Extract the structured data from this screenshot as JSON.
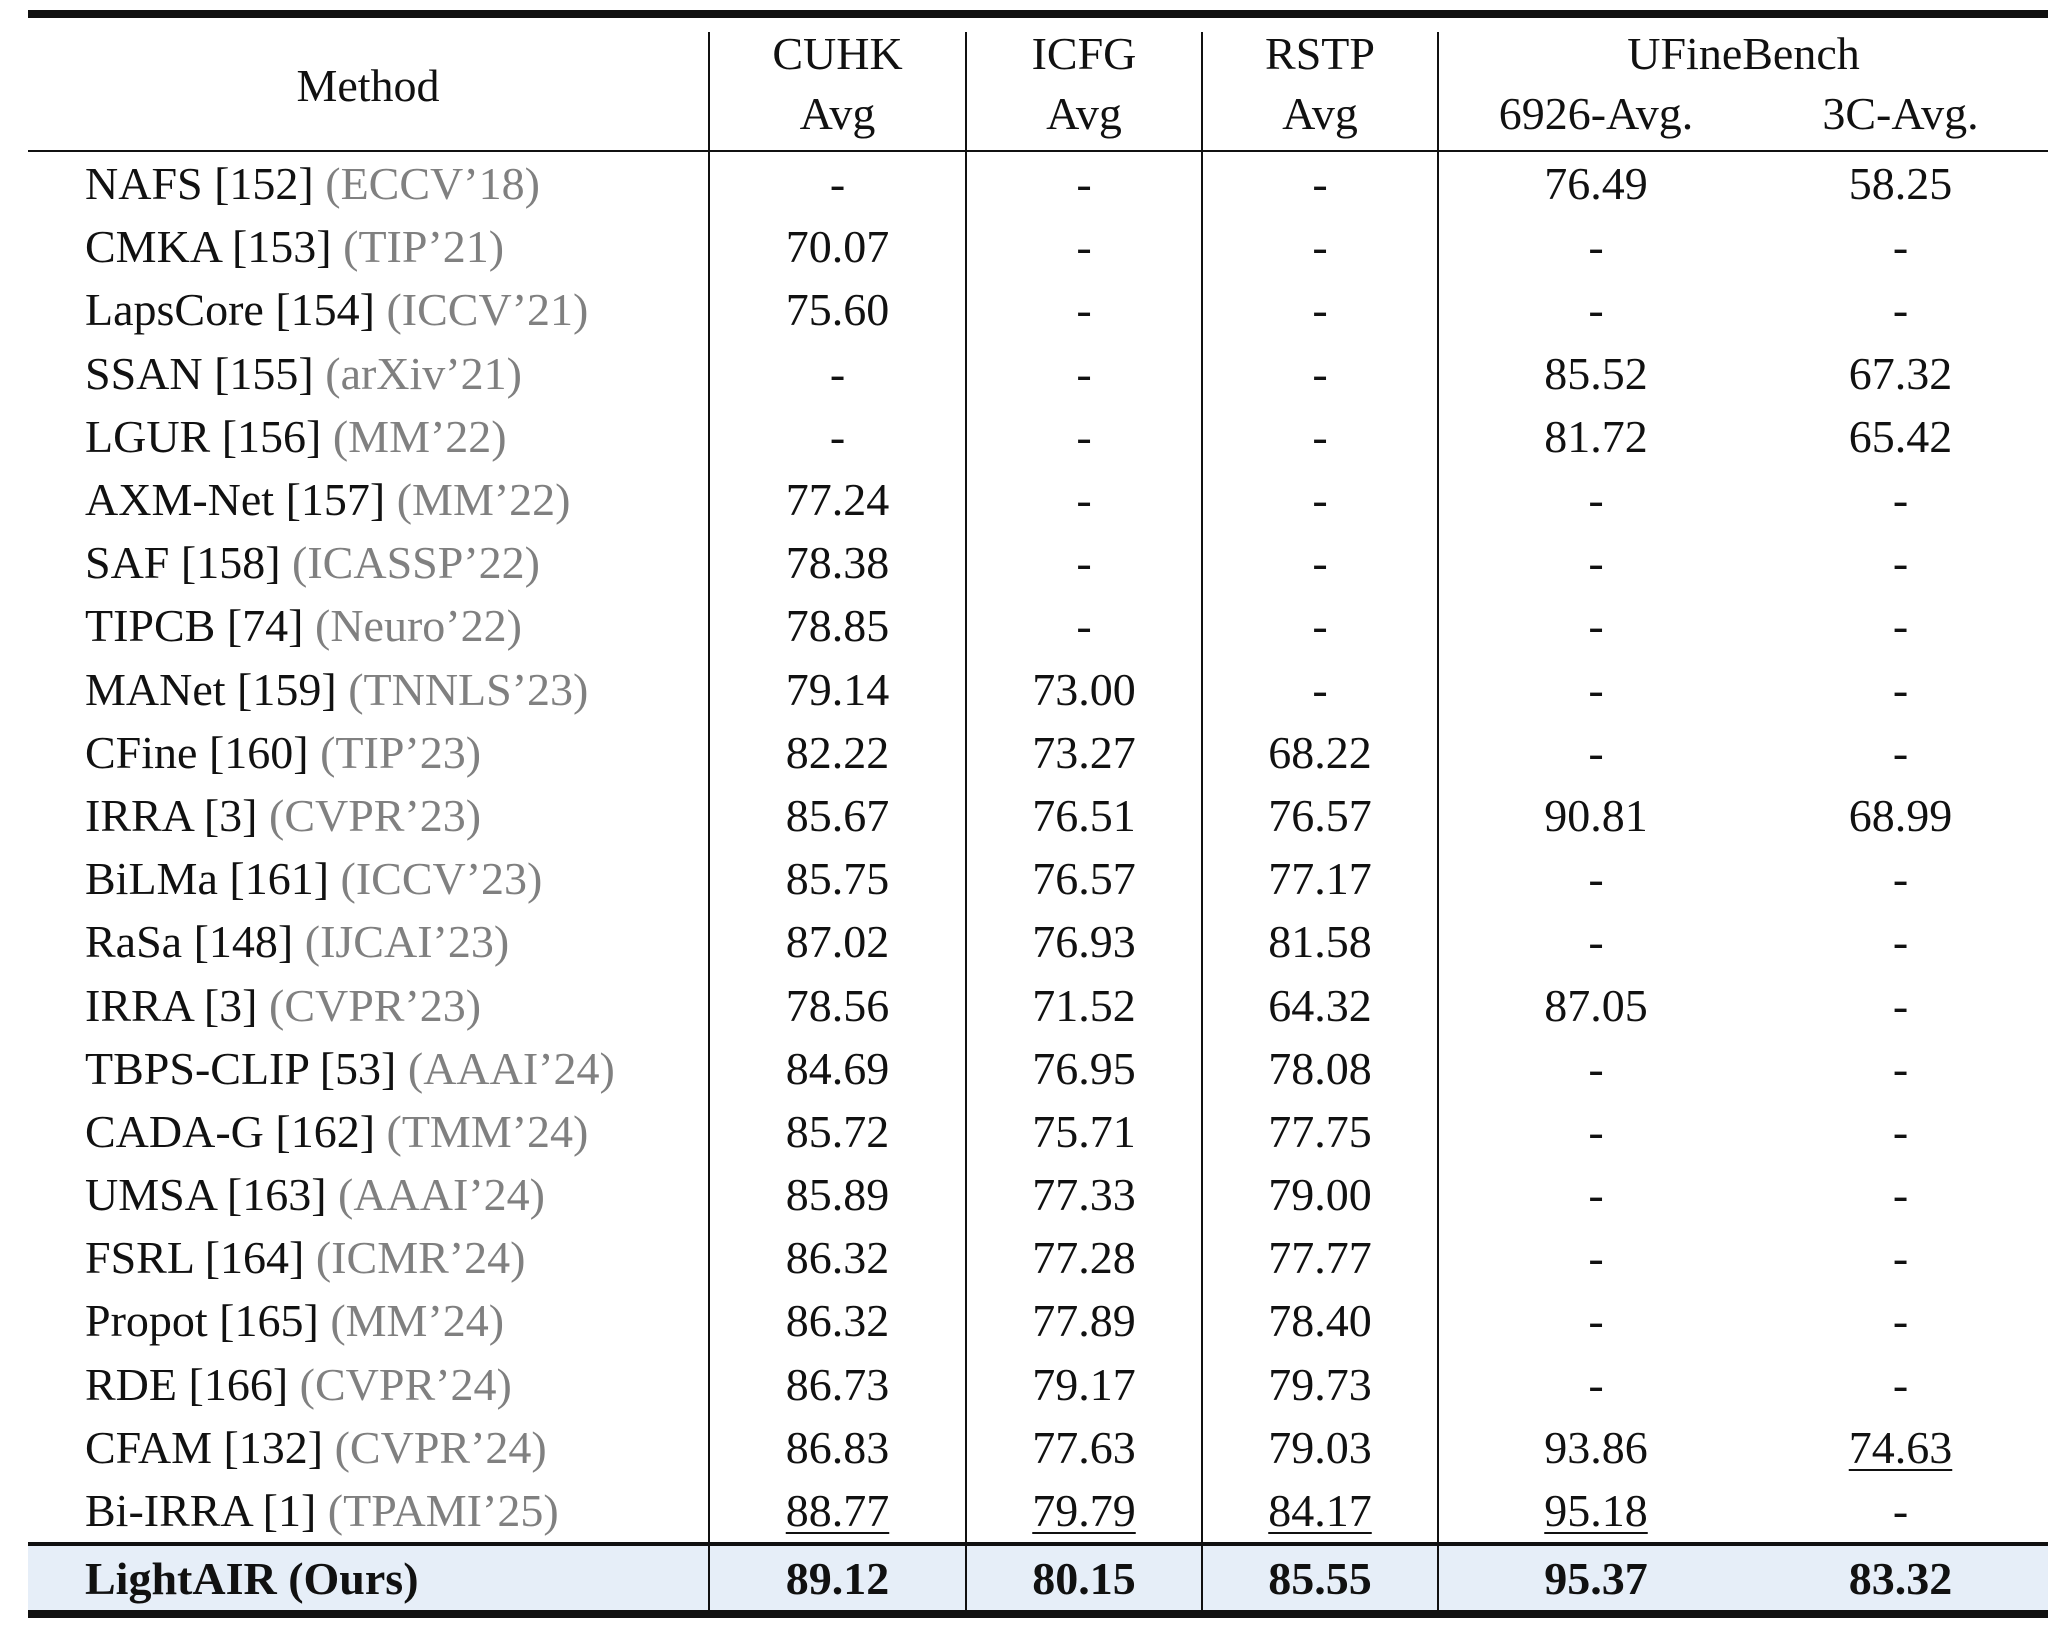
{
  "header": {
    "method": "Method",
    "cuhk": "CUHK",
    "icfg": "ICFG",
    "rstp": "RSTP",
    "ufine": "UFineBench",
    "avg": "Avg",
    "ufine_6926": "6926-Avg.",
    "ufine_3c": "3C-Avg."
  },
  "rows": [
    {
      "name": "NAFS [152]",
      "venue": "(ECCV’18)",
      "cuhk": "-",
      "icfg": "-",
      "rstp": "-",
      "u6926": "76.49",
      "u3c": "58.25"
    },
    {
      "name": "CMKA [153]",
      "venue": "(TIP’21)",
      "cuhk": "70.07",
      "icfg": "-",
      "rstp": "-",
      "u6926": "-",
      "u3c": "-"
    },
    {
      "name": "LapsCore [154]",
      "venue": "(ICCV’21)",
      "cuhk": "75.60",
      "icfg": "-",
      "rstp": "-",
      "u6926": "-",
      "u3c": "-"
    },
    {
      "name": "SSAN [155]",
      "venue": "(arXiv’21)",
      "cuhk": "-",
      "icfg": "-",
      "rstp": "-",
      "u6926": "85.52",
      "u3c": "67.32"
    },
    {
      "name": "LGUR [156]",
      "venue": "(MM’22)",
      "cuhk": "-",
      "icfg": "-",
      "rstp": "-",
      "u6926": "81.72",
      "u3c": "65.42"
    },
    {
      "name": "AXM-Net [157]",
      "venue": "(MM’22)",
      "cuhk": "77.24",
      "icfg": "-",
      "rstp": "-",
      "u6926": "-",
      "u3c": "-"
    },
    {
      "name": "SAF [158]",
      "venue": "(ICASSP’22)",
      "cuhk": "78.38",
      "icfg": "-",
      "rstp": "-",
      "u6926": "-",
      "u3c": "-"
    },
    {
      "name": "TIPCB [74]",
      "venue": "(Neuro’22)",
      "cuhk": "78.85",
      "icfg": "-",
      "rstp": "-",
      "u6926": "-",
      "u3c": "-"
    },
    {
      "name": "MANet [159]",
      "venue": "(TNNLS’23)",
      "cuhk": "79.14",
      "icfg": "73.00",
      "rstp": "-",
      "u6926": "-",
      "u3c": "-"
    },
    {
      "name": "CFine [160]",
      "venue": "(TIP’23)",
      "cuhk": "82.22",
      "icfg": "73.27",
      "rstp": "68.22",
      "u6926": "-",
      "u3c": "-"
    },
    {
      "name": "IRRA [3]",
      "venue": "(CVPR’23)",
      "cuhk": "85.67",
      "icfg": "76.51",
      "rstp": "76.57",
      "u6926": "90.81",
      "u3c": "68.99"
    },
    {
      "name": "BiLMa [161]",
      "venue": "(ICCV’23)",
      "cuhk": "85.75",
      "icfg": "76.57",
      "rstp": "77.17",
      "u6926": "-",
      "u3c": "-"
    },
    {
      "name": "RaSa [148]",
      "venue": "(IJCAI’23)",
      "cuhk": "87.02",
      "icfg": "76.93",
      "rstp": "81.58",
      "u6926": "-",
      "u3c": "-"
    },
    {
      "name": "IRRA [3]",
      "venue": "(CVPR’23)",
      "cuhk": "78.56",
      "icfg": "71.52",
      "rstp": "64.32",
      "u6926": "87.05",
      "u3c": "-"
    },
    {
      "name": "TBPS-CLIP [53]",
      "venue": "(AAAI’24)",
      "cuhk": "84.69",
      "icfg": "76.95",
      "rstp": "78.08",
      "u6926": "-",
      "u3c": "-"
    },
    {
      "name": "CADA-G [162]",
      "venue": "(TMM’24)",
      "cuhk": "85.72",
      "icfg": "75.71",
      "rstp": "77.75",
      "u6926": "-",
      "u3c": "-"
    },
    {
      "name": "UMSA [163]",
      "venue": "(AAAI’24)",
      "cuhk": "85.89",
      "icfg": "77.33",
      "rstp": "79.00",
      "u6926": "-",
      "u3c": "-"
    },
    {
      "name": "FSRL [164]",
      "venue": "(ICMR’24)",
      "cuhk": "86.32",
      "icfg": "77.28",
      "rstp": "77.77",
      "u6926": "-",
      "u3c": "-"
    },
    {
      "name": "Propot [165]",
      "venue": "(MM’24)",
      "cuhk": "86.32",
      "icfg": "77.89",
      "rstp": "78.40",
      "u6926": "-",
      "u3c": "-"
    },
    {
      "name": "RDE [166]",
      "venue": "(CVPR’24)",
      "cuhk": "86.73",
      "icfg": "79.17",
      "rstp": "79.73",
      "u6926": "-",
      "u3c": "-"
    },
    {
      "name": "CFAM [132]",
      "venue": "(CVPR’24)",
      "cuhk": "86.83",
      "icfg": "77.63",
      "rstp": "79.03",
      "u6926": "93.86",
      "u3c": "74.63",
      "underline": [
        "u3c"
      ]
    },
    {
      "name": "Bi-IRRA [1]",
      "venue": "(TPAMI’25)",
      "cuhk": "88.77",
      "icfg": "79.79",
      "rstp": "84.17",
      "u6926": "95.18",
      "u3c": "-",
      "underline": [
        "cuhk",
        "icfg",
        "rstp",
        "u6926"
      ]
    }
  ],
  "ours": {
    "name": "LightAIR (Ours)",
    "cuhk": "89.12",
    "icfg": "80.15",
    "rstp": "85.55",
    "u6926": "95.37",
    "u3c": "83.32"
  },
  "colors": {
    "venue": "#808080",
    "highlight_row": "#e6eef8",
    "rule": "#111111"
  }
}
